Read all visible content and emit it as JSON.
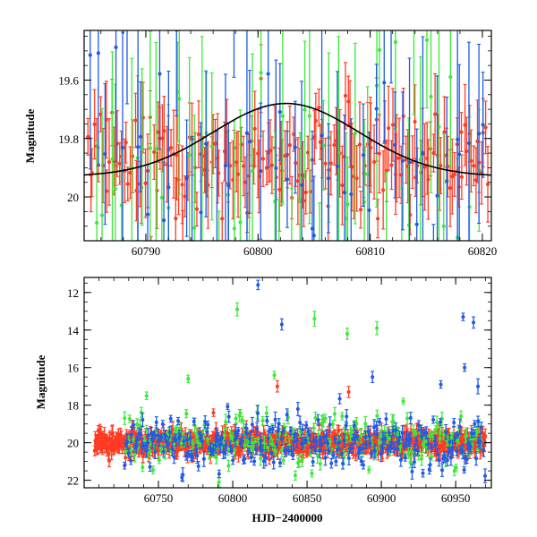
{
  "chart_data": [
    {
      "type": "scatter",
      "title": "",
      "xlabel": "",
      "ylabel": "Magnitude",
      "xlim": [
        60784.5,
        60820.8
      ],
      "ylim": [
        20.15,
        19.43
      ],
      "y_inverted": true,
      "xticks": [
        60790,
        60800,
        60810,
        60820
      ],
      "xtick_labels": [
        "60790",
        "60800",
        "60810",
        "60820"
      ],
      "yticks": [
        19.6,
        19.8,
        20.0
      ],
      "ytick_labels": [
        "19.6",
        "19.8",
        "20"
      ],
      "model_curve": {
        "kind": "gaussian",
        "baseline": 19.93,
        "peak_mag": 19.68,
        "t0": 60802.5,
        "sigma": 6.5,
        "color": "#000000"
      },
      "series": [
        {
          "name": "red",
          "color": "#ff3b22",
          "x_start": 60784.8,
          "x_end": 60820.6,
          "n": 190,
          "mean": 19.88,
          "spread": 0.09,
          "err": 0.11,
          "seed": 11
        },
        {
          "name": "green",
          "color": "#3ee83a",
          "x_start": 60785.5,
          "x_end": 60820.0,
          "n": 60,
          "mean": 19.85,
          "spread": 0.2,
          "err": 0.3,
          "seed": 22
        },
        {
          "name": "blue",
          "color": "#1f5be6",
          "x_start": 60784.9,
          "x_end": 60820.5,
          "n": 55,
          "mean": 19.82,
          "spread": 0.22,
          "err": 0.3,
          "seed": 33
        }
      ]
    },
    {
      "type": "scatter",
      "title": "",
      "xlabel": "HJD−2400000",
      "ylabel": "Magnitude",
      "xlim": [
        60700,
        60974
      ],
      "ylim": [
        22.4,
        11.2
      ],
      "y_inverted": true,
      "xticks": [
        60750,
        60800,
        60850,
        60900,
        60950
      ],
      "xtick_labels": [
        "60750",
        "60800",
        "60850",
        "60900",
        "60950"
      ],
      "yticks": [
        12,
        14,
        16,
        18,
        20,
        22
      ],
      "ytick_labels": [
        "12",
        "14",
        "16",
        "18",
        "20",
        "22"
      ],
      "series": [
        {
          "name": "red",
          "color": "#ff3b22",
          "x_start": 60707,
          "x_end": 60970,
          "n": 900,
          "mean": 20.0,
          "spread": 0.28,
          "err": 0.35,
          "seed": 44
        },
        {
          "name": "green",
          "color": "#3ee83a",
          "x_start": 60727,
          "x_end": 60968,
          "n": 220,
          "mean": 19.9,
          "spread": 0.75,
          "err": 0.3,
          "seed": 55
        },
        {
          "name": "blue",
          "color": "#1f5be6",
          "x_start": 60727,
          "x_end": 60970,
          "n": 260,
          "mean": 20.0,
          "spread": 0.75,
          "err": 0.3,
          "seed": 66
        }
      ],
      "outliers": [
        {
          "series": "green",
          "x": 60803,
          "y": 12.9,
          "err": 0.35
        },
        {
          "series": "green",
          "x": 60855,
          "y": 13.4,
          "err": 0.4
        },
        {
          "series": "green",
          "x": 60877,
          "y": 14.2,
          "err": 0.3
        },
        {
          "series": "green",
          "x": 60897,
          "y": 13.9,
          "err": 0.35
        },
        {
          "series": "green",
          "x": 60770,
          "y": 16.6,
          "err": 0.2
        },
        {
          "series": "green",
          "x": 60828,
          "y": 16.4,
          "err": 0.2
        },
        {
          "series": "green",
          "x": 60742,
          "y": 17.5,
          "err": 0.2
        },
        {
          "series": "blue",
          "x": 60817,
          "y": 11.6,
          "err": 0.25
        },
        {
          "series": "blue",
          "x": 60833,
          "y": 13.7,
          "err": 0.3
        },
        {
          "series": "blue",
          "x": 60955,
          "y": 13.3,
          "err": 0.2
        },
        {
          "series": "blue",
          "x": 60962,
          "y": 13.6,
          "err": 0.3
        },
        {
          "series": "blue",
          "x": 60894,
          "y": 16.5,
          "err": 0.3
        },
        {
          "series": "blue",
          "x": 60956,
          "y": 16.0,
          "err": 0.2
        },
        {
          "series": "blue",
          "x": 60940,
          "y": 16.9,
          "err": 0.2
        },
        {
          "series": "blue",
          "x": 60965,
          "y": 17.0,
          "err": 0.4
        },
        {
          "series": "red",
          "x": 60830,
          "y": 17.0,
          "err": 0.3
        },
        {
          "series": "red",
          "x": 60878,
          "y": 17.3,
          "err": 0.3
        },
        {
          "series": "red",
          "x": 60787,
          "y": 18.4,
          "err": 0.2
        }
      ]
    }
  ]
}
